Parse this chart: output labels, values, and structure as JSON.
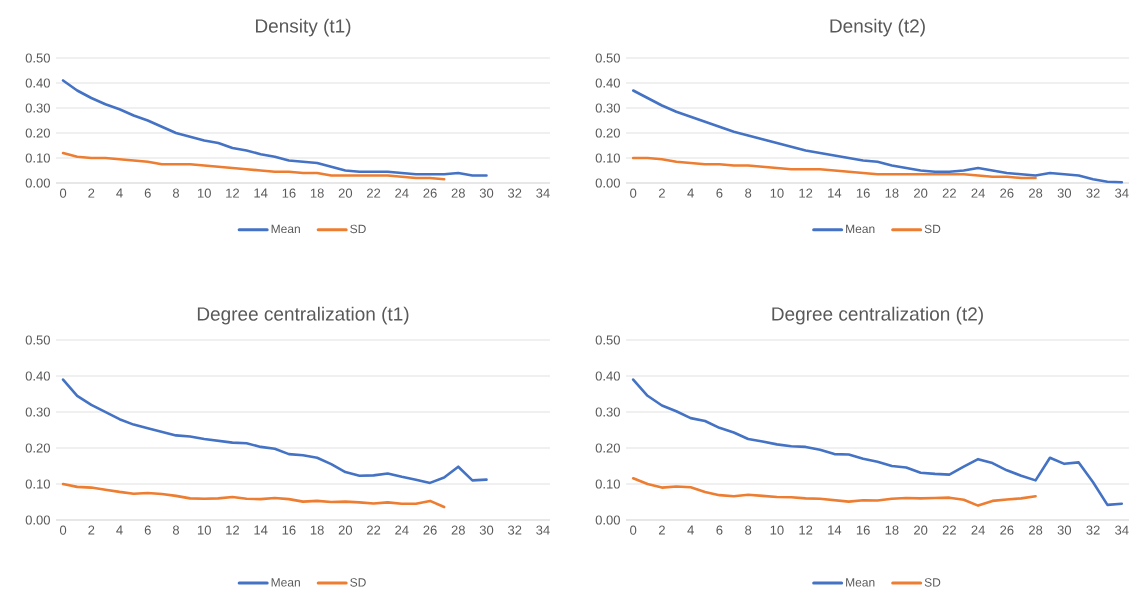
{
  "chart_data": [
    {
      "type": "line",
      "title": "Density (t1)",
      "xlim": [
        -0.5,
        34.5
      ],
      "xticks": [
        0,
        2,
        4,
        6,
        8,
        10,
        12,
        14,
        16,
        18,
        20,
        22,
        24,
        26,
        28,
        30,
        32,
        34
      ],
      "ylim": [
        0,
        0.5
      ],
      "yticks": [
        {
          "value": 0,
          "label": "0.00"
        },
        {
          "value": 0.1,
          "label": "0.10"
        },
        {
          "value": 0.2,
          "label": "0.20"
        },
        {
          "value": 0.3,
          "label": "0.30"
        },
        {
          "value": 0.4,
          "label": "0.40"
        },
        {
          "value": 0.5,
          "label": "0.50"
        }
      ],
      "grid": "y",
      "legend": "bottom",
      "marker": "none",
      "line_style": "solid",
      "series": [
        {
          "name": "Mean",
          "color": "#4472c4",
          "x": [
            0,
            1,
            2,
            3,
            4,
            5,
            6,
            7,
            8,
            9,
            10,
            11,
            12,
            13,
            14,
            15,
            16,
            17,
            18,
            19,
            20,
            21,
            22,
            23,
            24,
            25,
            26,
            27,
            28,
            29,
            30
          ],
          "values": [
            0.41,
            0.37,
            0.34,
            0.315,
            0.295,
            0.27,
            0.25,
            0.225,
            0.2,
            0.185,
            0.17,
            0.16,
            0.14,
            0.13,
            0.115,
            0.105,
            0.09,
            0.085,
            0.08,
            0.065,
            0.05,
            0.045,
            0.045,
            0.045,
            0.04,
            0.035,
            0.035,
            0.035,
            0.04,
            0.03,
            0.03
          ]
        },
        {
          "name": "SD",
          "color": "#ed7d31",
          "x": [
            0,
            1,
            2,
            3,
            4,
            5,
            6,
            7,
            8,
            9,
            10,
            11,
            12,
            13,
            14,
            15,
            16,
            17,
            18,
            19,
            20,
            21,
            22,
            23,
            24,
            25,
            26,
            27
          ],
          "values": [
            0.12,
            0.105,
            0.1,
            0.1,
            0.095,
            0.09,
            0.085,
            0.075,
            0.075,
            0.075,
            0.07,
            0.065,
            0.06,
            0.055,
            0.05,
            0.045,
            0.045,
            0.04,
            0.04,
            0.03,
            0.03,
            0.03,
            0.03,
            0.03,
            0.025,
            0.02,
            0.02,
            0.015
          ]
        }
      ]
    },
    {
      "type": "line",
      "title": "Density (t2)",
      "xlim": [
        -0.5,
        34.5
      ],
      "xticks": [
        0,
        2,
        4,
        6,
        8,
        10,
        12,
        14,
        16,
        18,
        20,
        22,
        24,
        26,
        28,
        30,
        32,
        34
      ],
      "ylim": [
        0,
        0.5
      ],
      "yticks": [
        {
          "value": 0,
          "label": "0.00"
        },
        {
          "value": 0.1,
          "label": "0.10"
        },
        {
          "value": 0.2,
          "label": "0.20"
        },
        {
          "value": 0.3,
          "label": "0.30"
        },
        {
          "value": 0.4,
          "label": "0.40"
        },
        {
          "value": 0.5,
          "label": "0.50"
        }
      ],
      "grid": "y",
      "legend": "bottom",
      "marker": "none",
      "line_style": "solid",
      "series": [
        {
          "name": "Mean",
          "color": "#4472c4",
          "x": [
            0,
            1,
            2,
            3,
            4,
            5,
            6,
            7,
            8,
            9,
            10,
            11,
            12,
            13,
            14,
            15,
            16,
            17,
            18,
            19,
            20,
            21,
            22,
            23,
            24,
            25,
            26,
            27,
            28,
            29,
            30,
            31,
            32,
            33,
            34
          ],
          "values": [
            0.37,
            0.34,
            0.31,
            0.285,
            0.265,
            0.245,
            0.225,
            0.205,
            0.19,
            0.175,
            0.16,
            0.145,
            0.13,
            0.12,
            0.11,
            0.1,
            0.09,
            0.085,
            0.07,
            0.06,
            0.05,
            0.045,
            0.045,
            0.05,
            0.06,
            0.05,
            0.04,
            0.035,
            0.03,
            0.04,
            0.035,
            0.03,
            0.015,
            0.005,
            0.003
          ]
        },
        {
          "name": "SD",
          "color": "#ed7d31",
          "x": [
            0,
            1,
            2,
            3,
            4,
            5,
            6,
            7,
            8,
            9,
            10,
            11,
            12,
            13,
            14,
            15,
            16,
            17,
            18,
            19,
            20,
            21,
            22,
            23,
            24,
            25,
            26,
            27,
            28
          ],
          "values": [
            0.1,
            0.1,
            0.095,
            0.085,
            0.08,
            0.075,
            0.075,
            0.07,
            0.07,
            0.065,
            0.06,
            0.055,
            0.055,
            0.055,
            0.05,
            0.045,
            0.04,
            0.035,
            0.035,
            0.035,
            0.035,
            0.035,
            0.035,
            0.035,
            0.03,
            0.025,
            0.025,
            0.02,
            0.02
          ]
        }
      ]
    },
    {
      "type": "line",
      "title": "Degree centralization (t1)",
      "xlim": [
        -0.5,
        34.5
      ],
      "xticks": [
        0,
        2,
        4,
        6,
        8,
        10,
        12,
        14,
        16,
        18,
        20,
        22,
        24,
        26,
        28,
        30,
        32,
        34
      ],
      "ylim": [
        0,
        0.5
      ],
      "yticks": [
        {
          "value": 0,
          "label": "0.00"
        },
        {
          "value": 0.1,
          "label": "0.10"
        },
        {
          "value": 0.2,
          "label": "0.20"
        },
        {
          "value": 0.3,
          "label": "0.30"
        },
        {
          "value": 0.4,
          "label": "0.40"
        },
        {
          "value": 0.5,
          "label": "0.50"
        }
      ],
      "grid": "y",
      "legend": "bottom",
      "marker": "none",
      "line_style": "solid",
      "series": [
        {
          "name": "Mean",
          "color": "#4472c4",
          "x": [
            0,
            1,
            2,
            3,
            4,
            5,
            6,
            7,
            8,
            9,
            10,
            11,
            12,
            13,
            14,
            15,
            16,
            17,
            18,
            19,
            20,
            21,
            22,
            23,
            24,
            25,
            26,
            27,
            28,
            29,
            30
          ],
          "values": [
            0.39,
            0.345,
            0.32,
            0.3,
            0.28,
            0.265,
            0.255,
            0.245,
            0.235,
            0.232,
            0.225,
            0.22,
            0.215,
            0.213,
            0.203,
            0.198,
            0.183,
            0.18,
            0.173,
            0.155,
            0.133,
            0.123,
            0.124,
            0.129,
            0.12,
            0.112,
            0.103,
            0.118,
            0.148,
            0.11,
            0.112
          ]
        },
        {
          "name": "SD",
          "color": "#ed7d31",
          "x": [
            0,
            1,
            2,
            3,
            4,
            5,
            6,
            7,
            8,
            9,
            10,
            11,
            12,
            13,
            14,
            15,
            16,
            17,
            18,
            19,
            20,
            21,
            22,
            23,
            24,
            25,
            26,
            27
          ],
          "values": [
            0.1,
            0.092,
            0.09,
            0.084,
            0.078,
            0.073,
            0.075,
            0.072,
            0.067,
            0.06,
            0.059,
            0.06,
            0.064,
            0.059,
            0.058,
            0.061,
            0.058,
            0.051,
            0.053,
            0.05,
            0.051,
            0.049,
            0.046,
            0.049,
            0.045,
            0.045,
            0.053,
            0.036
          ]
        }
      ]
    },
    {
      "type": "line",
      "title": "Degree centralization (t2)",
      "xlim": [
        -0.5,
        34.5
      ],
      "xticks": [
        0,
        2,
        4,
        6,
        8,
        10,
        12,
        14,
        16,
        18,
        20,
        22,
        24,
        26,
        28,
        30,
        32,
        34
      ],
      "ylim": [
        0,
        0.5
      ],
      "yticks": [
        {
          "value": 0,
          "label": "0.00"
        },
        {
          "value": 0.1,
          "label": "0.10"
        },
        {
          "value": 0.2,
          "label": "0.20"
        },
        {
          "value": 0.3,
          "label": "0.30"
        },
        {
          "value": 0.4,
          "label": "0.40"
        },
        {
          "value": 0.5,
          "label": "0.50"
        }
      ],
      "grid": "y",
      "legend": "bottom",
      "marker": "none",
      "line_style": "solid",
      "series": [
        {
          "name": "Mean",
          "color": "#4472c4",
          "x": [
            0,
            1,
            2,
            3,
            4,
            5,
            6,
            7,
            8,
            9,
            10,
            11,
            12,
            13,
            14,
            15,
            16,
            17,
            18,
            19,
            20,
            21,
            22,
            23,
            24,
            25,
            26,
            27,
            28,
            29,
            30,
            31,
            32,
            33,
            34
          ],
          "values": [
            0.39,
            0.345,
            0.318,
            0.302,
            0.283,
            0.275,
            0.256,
            0.243,
            0.225,
            0.218,
            0.21,
            0.205,
            0.203,
            0.195,
            0.183,
            0.182,
            0.17,
            0.162,
            0.15,
            0.146,
            0.131,
            0.128,
            0.126,
            0.148,
            0.169,
            0.158,
            0.138,
            0.123,
            0.11,
            0.173,
            0.156,
            0.16,
            0.105,
            0.042,
            0.045
          ]
        },
        {
          "name": "SD",
          "color": "#ed7d31",
          "x": [
            0,
            1,
            2,
            3,
            4,
            5,
            6,
            7,
            8,
            9,
            10,
            11,
            12,
            13,
            14,
            15,
            16,
            17,
            18,
            19,
            20,
            21,
            22,
            23,
            24,
            25,
            26,
            27,
            28
          ],
          "values": [
            0.116,
            0.1,
            0.09,
            0.093,
            0.091,
            0.078,
            0.069,
            0.066,
            0.07,
            0.067,
            0.064,
            0.063,
            0.06,
            0.059,
            0.055,
            0.051,
            0.055,
            0.054,
            0.059,
            0.061,
            0.06,
            0.061,
            0.062,
            0.056,
            0.04,
            0.053,
            0.057,
            0.06,
            0.066
          ]
        }
      ]
    }
  ]
}
